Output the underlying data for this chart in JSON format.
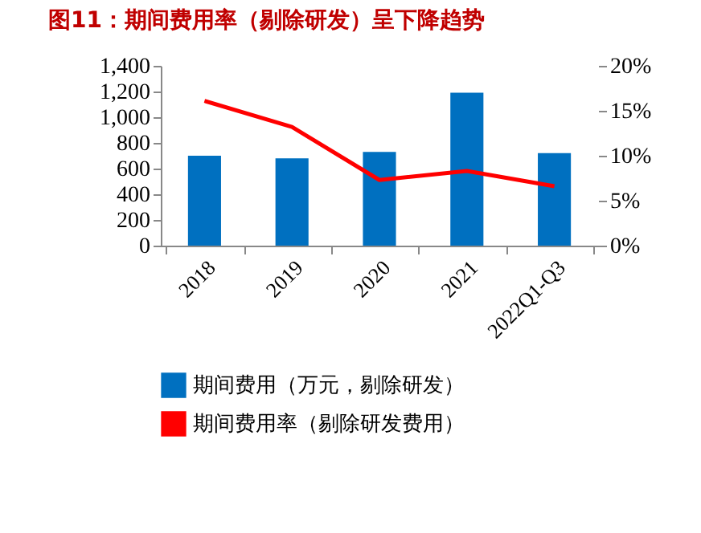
{
  "chart_data": {
    "type": "bar",
    "title": "图11：期间费用率（剔除研发）呈下降趋势",
    "categories": [
      "2018",
      "2019",
      "2020",
      "2021",
      "2022Q1-Q3"
    ],
    "series": [
      {
        "name": "期间费用（万元，剔除研发）",
        "color": "#0070c0",
        "values": [
          700,
          680,
          730,
          1190,
          720
        ]
      },
      {
        "name": "期间费用率（剔除研发费用）",
        "type": "line",
        "axis": "y2",
        "color": "#ff0000",
        "values": [
          16.1,
          13.2,
          7.3,
          8.3,
          6.6
        ]
      }
    ],
    "ylim": [
      0,
      1400
    ],
    "yticks": [
      0,
      200,
      400,
      600,
      800,
      {
        "value": 1000,
        "label": "1,000"
      },
      {
        "value": 1200,
        "label": "1,200"
      },
      {
        "value": 1400,
        "label": "1,400"
      }
    ],
    "y2lim": [
      0,
      20
    ],
    "y2ticks": [
      {
        "value": 0,
        "label": "0%"
      },
      {
        "value": 5,
        "label": "5%"
      },
      {
        "value": 10,
        "label": "10%"
      },
      {
        "value": 15,
        "label": "15%"
      },
      {
        "value": 20,
        "label": "20%"
      }
    ],
    "legend": "bottom"
  }
}
